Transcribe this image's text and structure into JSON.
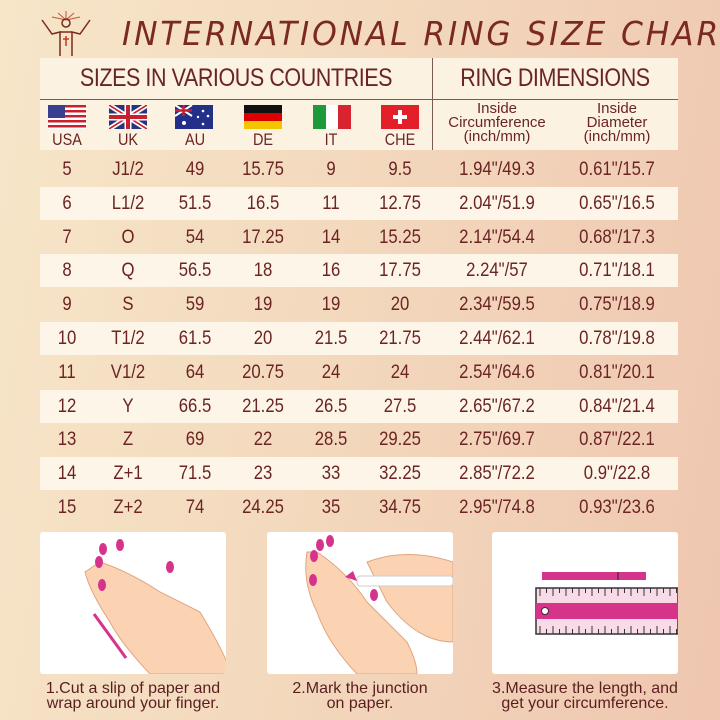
{
  "title": "INTERNATIONAL RING SIZE CHART",
  "header": {
    "countries_title": "SIZES IN VARIOUS COUNTRIES",
    "dimensions_title": "RING DIMENSIONS",
    "countries": [
      {
        "label": "USA",
        "flag": "flag-usa"
      },
      {
        "label": "UK",
        "flag": "flag-uk"
      },
      {
        "label": "AU",
        "flag": "flag-australia"
      },
      {
        "label": "DE",
        "flag": "flag-germany"
      },
      {
        "label": "IT",
        "flag": "flag-italy"
      },
      {
        "label": "CHE",
        "flag": "flag-switzerland"
      }
    ],
    "circumference": [
      "Inside",
      "Circumference",
      "(inch/mm)"
    ],
    "diameter": [
      "Inside",
      "Diameter",
      "(inch/mm)"
    ]
  },
  "rows": [
    [
      "5",
      "J1/2",
      "49",
      "15.75",
      "9",
      "9.5",
      "1.94\"/49.3",
      "0.61\"/15.7"
    ],
    [
      "6",
      "L1/2",
      "51.5",
      "16.5",
      "11",
      "12.75",
      "2.04\"/51.9",
      "0.65\"/16.5"
    ],
    [
      "7",
      "O",
      "54",
      "17.25",
      "14",
      "15.25",
      "2.14\"/54.4",
      "0.68\"/17.3"
    ],
    [
      "8",
      "Q",
      "56.5",
      "18",
      "16",
      "17.75",
      "2.24\"/57",
      "0.71\"/18.1"
    ],
    [
      "9",
      "S",
      "59",
      "19",
      "19",
      "20",
      "2.34\"/59.5",
      "0.75\"/18.9"
    ],
    [
      "10",
      "T1/2",
      "61.5",
      "20",
      "21.5",
      "21.75",
      "2.44\"/62.1",
      "0.78\"/19.8"
    ],
    [
      "11",
      "V1/2",
      "64",
      "20.75",
      "24",
      "24",
      "2.54\"/64.6",
      "0.81\"/20.1"
    ],
    [
      "12",
      "Y",
      "66.5",
      "21.25",
      "26.5",
      "27.5",
      "2.65\"/67.2",
      "0.84\"/21.4"
    ],
    [
      "13",
      "Z",
      "69",
      "22",
      "28.5",
      "29.25",
      "2.75\"/69.7",
      "0.87\"/22.1"
    ],
    [
      "14",
      "Z+1",
      "71.5",
      "23",
      "33",
      "32.25",
      "2.85\"/72.2",
      "0.9\"/22.8"
    ],
    [
      "15",
      "Z+2",
      "74",
      "24.25",
      "35",
      "34.75",
      "2.95\"/74.8",
      "0.93\"/23.6"
    ]
  ],
  "steps": [
    {
      "line1": "1.Cut a slip of paper and",
      "line2": "wrap around your finger."
    },
    {
      "line1": "2.Mark the junction",
      "line2": "on paper."
    },
    {
      "line1": "3.Measure the length, and",
      "line2": "get your circumference."
    }
  ],
  "colors": {
    "text": "#6b2424",
    "accent": "#d6338a",
    "row_highlight": "#fdf5e8"
  }
}
